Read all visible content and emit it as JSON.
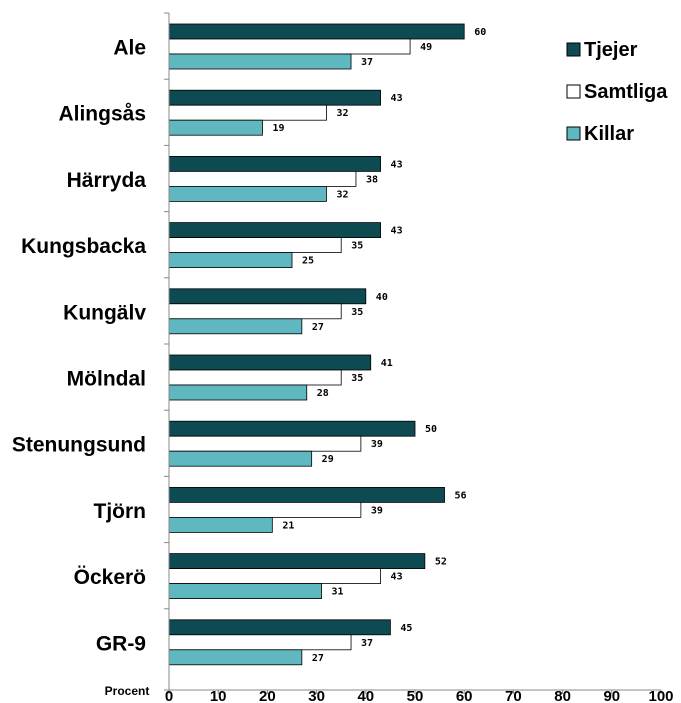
{
  "chart_data": {
    "type": "bar",
    "orientation": "horizontal",
    "categories": [
      "Ale",
      "Alingsås",
      "Härryda",
      "Kungsbacka",
      "Kungälv",
      "Mölndal",
      "Stenungsund",
      "Tjörn",
      "Öckerö",
      "GR-9"
    ],
    "series": [
      {
        "name": "Tjejer",
        "color": "#0d4a52",
        "values": [
          60,
          43,
          43,
          43,
          40,
          41,
          50,
          56,
          52,
          45
        ]
      },
      {
        "name": "Samtliga",
        "color": "#ffffff",
        "values": [
          49,
          32,
          38,
          35,
          35,
          35,
          39,
          39,
          43,
          37
        ]
      },
      {
        "name": "Killar",
        "color": "#5fb8c0",
        "values": [
          37,
          19,
          32,
          25,
          27,
          28,
          29,
          21,
          31,
          27
        ]
      }
    ],
    "xlabel": "Procent",
    "xlim": [
      0,
      100
    ],
    "xticks": [
      0,
      10,
      20,
      30,
      40,
      50,
      60,
      70,
      80,
      90,
      100
    ],
    "legend_position": "top-right",
    "grid": false
  }
}
